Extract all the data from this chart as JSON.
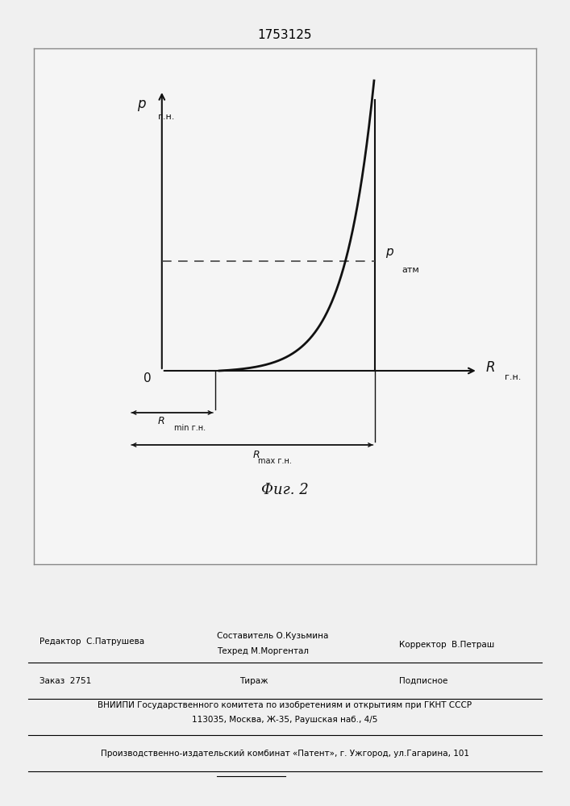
{
  "title": "1753125",
  "fig_label": "Фиг. 2",
  "bg_color": "#f0f0f0",
  "plot_bg": "#f5f5f5",
  "curve_color": "#111111",
  "dashed_color": "#444444",
  "axis_color": "#111111",
  "origin_label": "0",
  "footer_editor": "Редактор  С.Патрушева",
  "footer_comp1": "Составитель О.Кузьмина",
  "footer_comp2": "Техред М.Моргентал",
  "footer_corr": "Корректор  В.Петраш",
  "footer_order": "Заказ  2751",
  "footer_print": "Тираж",
  "footer_sub": "Подписное",
  "footer_vniip": "ВНИИПИ Государственного комитета по изобретениям и открытиям при ГКНТ СССР",
  "footer_addr": "113035, Москва, Ж-35, Раушская наб., 4/5",
  "footer_prod": "Производственно-издательский комбинат «Патент», г. Ужгород, ул.Гагарина, 101"
}
